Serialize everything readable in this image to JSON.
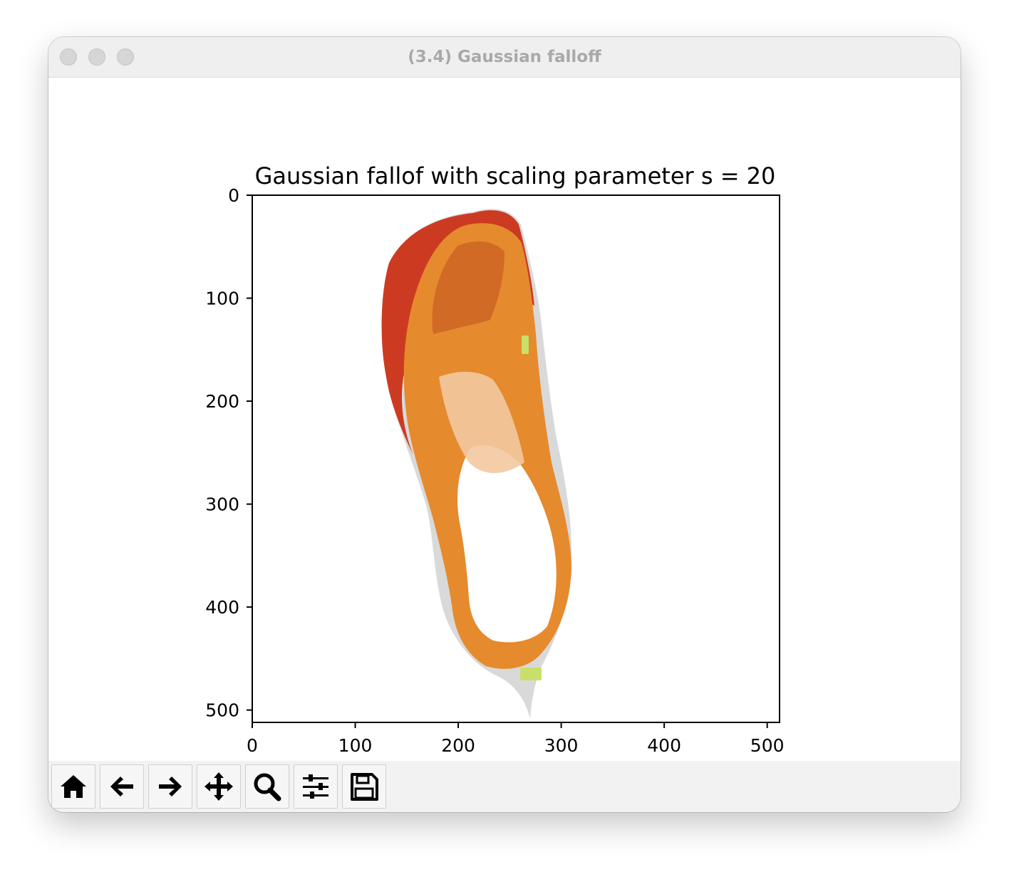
{
  "window": {
    "title": "(3.4) Gaussian falloff"
  },
  "chart_data": {
    "type": "image",
    "title": "Gaussian fallof with scaling parameter s = 20",
    "xlabel": "",
    "ylabel": "",
    "xlim": [
      0,
      512
    ],
    "ylim": [
      512,
      0
    ],
    "x_ticks": [
      0,
      100,
      200,
      300,
      400,
      500
    ],
    "y_ticks": [
      0,
      100,
      200,
      300,
      400,
      500
    ],
    "image_content": "running-shoe",
    "colors": {
      "upper": "#e68a2e",
      "toe_box": "#cc3a22",
      "insole": "#ffffff",
      "sole": "#d9d9d9",
      "accent": "#c8e06a"
    }
  },
  "toolbar": {
    "buttons": [
      {
        "name": "home-button",
        "icon": "home-icon"
      },
      {
        "name": "back-button",
        "icon": "arrow-left-icon"
      },
      {
        "name": "forward-button",
        "icon": "arrow-right-icon"
      },
      {
        "name": "pan-button",
        "icon": "move-icon"
      },
      {
        "name": "zoom-button",
        "icon": "magnifier-icon"
      },
      {
        "name": "configure-subplots-button",
        "icon": "sliders-icon"
      },
      {
        "name": "save-button",
        "icon": "floppy-disk-icon"
      }
    ]
  }
}
